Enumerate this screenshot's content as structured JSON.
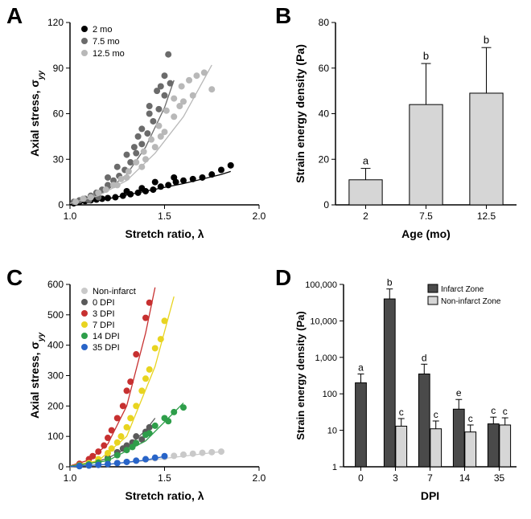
{
  "figure": {
    "background_color": "#ffffff",
    "panel_label_fontsize": 28,
    "panel_label_fontweight": "bold",
    "axis_label_fontsize": 14,
    "tick_fontsize": 12,
    "annotation_fontsize": 12
  },
  "panelA": {
    "label": "A",
    "type": "scatter",
    "xlabel": "Stretch ratio, λ",
    "ylabel": "Axial stress, σyy",
    "ylabel_prefix": "Axial stress, σ",
    "ylabel_sub": "yy",
    "xlim": [
      1.0,
      2.0
    ],
    "xticks": [
      1.0,
      1.5,
      2.0
    ],
    "ylim": [
      0,
      120
    ],
    "yticks": [
      0,
      30,
      60,
      90,
      120
    ],
    "legend_items": [
      {
        "label": "2 mo",
        "color": "#000000"
      },
      {
        "label": "7.5 mo",
        "color": "#6b6b6b"
      },
      {
        "label": "12.5 mo",
        "color": "#b8b8b8"
      }
    ],
    "series": [
      {
        "color": "#000000",
        "marker_size": 4,
        "points": [
          [
            1.02,
            1
          ],
          [
            1.05,
            2
          ],
          [
            1.08,
            2.5
          ],
          [
            1.11,
            3
          ],
          [
            1.14,
            3.5
          ],
          [
            1.17,
            4
          ],
          [
            1.2,
            4.5
          ],
          [
            1.24,
            5
          ],
          [
            1.28,
            6
          ],
          [
            1.32,
            7
          ],
          [
            1.36,
            8
          ],
          [
            1.4,
            9
          ],
          [
            1.44,
            10
          ],
          [
            1.48,
            12
          ],
          [
            1.52,
            13
          ],
          [
            1.56,
            15
          ],
          [
            1.6,
            16
          ],
          [
            1.65,
            17
          ],
          [
            1.7,
            18
          ],
          [
            1.75,
            20
          ],
          [
            1.8,
            23
          ],
          [
            1.85,
            26
          ],
          [
            1.45,
            15
          ],
          [
            1.55,
            18
          ],
          [
            1.38,
            11
          ],
          [
            1.3,
            9
          ]
        ],
        "fit_line": [
          [
            1.0,
            0
          ],
          [
            1.2,
            4
          ],
          [
            1.4,
            9
          ],
          [
            1.6,
            14
          ],
          [
            1.8,
            20
          ],
          [
            1.85,
            22
          ]
        ]
      },
      {
        "color": "#6b6b6b",
        "marker_size": 4,
        "points": [
          [
            1.02,
            2
          ],
          [
            1.05,
            3
          ],
          [
            1.08,
            4
          ],
          [
            1.11,
            6
          ],
          [
            1.14,
            8
          ],
          [
            1.17,
            10
          ],
          [
            1.2,
            13
          ],
          [
            1.23,
            16
          ],
          [
            1.26,
            19
          ],
          [
            1.29,
            23
          ],
          [
            1.32,
            28
          ],
          [
            1.35,
            34
          ],
          [
            1.38,
            40
          ],
          [
            1.41,
            47
          ],
          [
            1.44,
            55
          ],
          [
            1.47,
            63
          ],
          [
            1.5,
            72
          ],
          [
            1.53,
            80
          ],
          [
            1.48,
            78
          ],
          [
            1.42,
            60
          ],
          [
            1.36,
            45
          ],
          [
            1.3,
            33
          ],
          [
            1.25,
            25
          ],
          [
            1.2,
            18
          ],
          [
            1.34,
            38
          ],
          [
            1.38,
            50
          ],
          [
            1.42,
            65
          ],
          [
            1.46,
            75
          ],
          [
            1.5,
            85
          ],
          [
            1.52,
            99
          ],
          [
            1.15,
            5
          ],
          [
            1.1,
            3
          ]
        ],
        "fit_line": [
          [
            1.0,
            1
          ],
          [
            1.1,
            4
          ],
          [
            1.2,
            10
          ],
          [
            1.3,
            20
          ],
          [
            1.4,
            38
          ],
          [
            1.5,
            64
          ],
          [
            1.55,
            82
          ]
        ]
      },
      {
        "color": "#b8b8b8",
        "marker_size": 4,
        "points": [
          [
            1.03,
            2
          ],
          [
            1.07,
            4
          ],
          [
            1.11,
            5
          ],
          [
            1.15,
            8
          ],
          [
            1.19,
            10
          ],
          [
            1.23,
            13
          ],
          [
            1.27,
            17
          ],
          [
            1.31,
            22
          ],
          [
            1.35,
            28
          ],
          [
            1.39,
            35
          ],
          [
            1.43,
            43
          ],
          [
            1.47,
            52
          ],
          [
            1.51,
            62
          ],
          [
            1.55,
            70
          ],
          [
            1.59,
            78
          ],
          [
            1.63,
            82
          ],
          [
            1.67,
            85
          ],
          [
            1.71,
            87
          ],
          [
            1.75,
            76
          ],
          [
            1.4,
            30
          ],
          [
            1.45,
            38
          ],
          [
            1.5,
            48
          ],
          [
            1.55,
            58
          ],
          [
            1.6,
            68
          ],
          [
            1.65,
            72
          ],
          [
            1.58,
            65
          ],
          [
            1.48,
            45
          ],
          [
            1.38,
            25
          ],
          [
            1.3,
            18
          ],
          [
            1.25,
            13
          ]
        ],
        "fit_line": [
          [
            1.0,
            1
          ],
          [
            1.15,
            6
          ],
          [
            1.3,
            16
          ],
          [
            1.45,
            34
          ],
          [
            1.6,
            58
          ],
          [
            1.75,
            92
          ]
        ]
      }
    ]
  },
  "panelB": {
    "label": "B",
    "type": "bar",
    "xlabel": "Age (mo)",
    "ylabel": "Strain energy density (Pa)",
    "xlim_categories": [
      "2",
      "7.5",
      "12.5"
    ],
    "ylim": [
      0,
      80
    ],
    "yticks": [
      0,
      20,
      40,
      60,
      80
    ],
    "bar_color": "#d6d6d6",
    "bar_border": "#000000",
    "bar_width": 0.55,
    "bars": [
      {
        "category": "2",
        "value": 11,
        "error": 5,
        "annotation": "a"
      },
      {
        "category": "7.5",
        "value": 44,
        "error": 18,
        "annotation": "b"
      },
      {
        "category": "12.5",
        "value": 49,
        "error": 20,
        "annotation": "b"
      }
    ]
  },
  "panelC": {
    "label": "C",
    "type": "scatter",
    "xlabel": "Stretch ratio, λ",
    "ylabel_prefix": "Axial stress, σ",
    "ylabel_sub": "yy",
    "xlim": [
      1.0,
      2.0
    ],
    "xticks": [
      1.0,
      1.5,
      2.0
    ],
    "ylim": [
      0,
      600
    ],
    "yticks": [
      0,
      100,
      200,
      300,
      400,
      500,
      600
    ],
    "legend_items": [
      {
        "label": "Non-infarct",
        "color": "#c9c9c9"
      },
      {
        "label": "0 DPI",
        "color": "#5a5a5a"
      },
      {
        "label": "3 DPI",
        "color": "#c73030"
      },
      {
        "label": "7 DPI",
        "color": "#e8d420"
      },
      {
        "label": "14 DPI",
        "color": "#2e9e4a"
      },
      {
        "label": "35 DPI",
        "color": "#2864c8"
      }
    ],
    "series": [
      {
        "color": "#c9c9c9",
        "points": [
          [
            1.05,
            3
          ],
          [
            1.1,
            5
          ],
          [
            1.15,
            8
          ],
          [
            1.2,
            10
          ],
          [
            1.25,
            13
          ],
          [
            1.3,
            16
          ],
          [
            1.35,
            20
          ],
          [
            1.4,
            24
          ],
          [
            1.45,
            28
          ],
          [
            1.5,
            32
          ],
          [
            1.55,
            36
          ],
          [
            1.6,
            40
          ],
          [
            1.65,
            43
          ],
          [
            1.7,
            46
          ],
          [
            1.75,
            48
          ],
          [
            1.8,
            50
          ]
        ],
        "fit_line": [
          [
            1.0,
            0
          ],
          [
            1.2,
            8
          ],
          [
            1.4,
            20
          ],
          [
            1.6,
            35
          ],
          [
            1.8,
            50
          ]
        ]
      },
      {
        "color": "#5a5a5a",
        "points": [
          [
            1.05,
            5
          ],
          [
            1.1,
            10
          ],
          [
            1.15,
            18
          ],
          [
            1.2,
            30
          ],
          [
            1.25,
            48
          ],
          [
            1.3,
            70
          ],
          [
            1.35,
            100
          ],
          [
            1.4,
            115
          ],
          [
            1.42,
            130
          ],
          [
            1.38,
            90
          ],
          [
            1.33,
            80
          ],
          [
            1.28,
            60
          ]
        ],
        "fit_line": [
          [
            1.0,
            2
          ],
          [
            1.1,
            10
          ],
          [
            1.2,
            28
          ],
          [
            1.3,
            62
          ],
          [
            1.4,
            120
          ],
          [
            1.45,
            160
          ]
        ]
      },
      {
        "color": "#c73030",
        "points": [
          [
            1.05,
            10
          ],
          [
            1.1,
            25
          ],
          [
            1.15,
            50
          ],
          [
            1.2,
            95
          ],
          [
            1.25,
            160
          ],
          [
            1.3,
            250
          ],
          [
            1.35,
            370
          ],
          [
            1.4,
            490
          ],
          [
            1.42,
            540
          ],
          [
            1.32,
            280
          ],
          [
            1.28,
            200
          ],
          [
            1.22,
            120
          ],
          [
            1.18,
            70
          ],
          [
            1.12,
            35
          ]
        ],
        "fit_line": [
          [
            1.0,
            3
          ],
          [
            1.1,
            22
          ],
          [
            1.2,
            75
          ],
          [
            1.3,
            200
          ],
          [
            1.4,
            440
          ],
          [
            1.45,
            590
          ]
        ]
      },
      {
        "color": "#e8d420",
        "points": [
          [
            1.05,
            5
          ],
          [
            1.1,
            12
          ],
          [
            1.15,
            25
          ],
          [
            1.2,
            45
          ],
          [
            1.25,
            80
          ],
          [
            1.3,
            130
          ],
          [
            1.35,
            200
          ],
          [
            1.4,
            290
          ],
          [
            1.45,
            390
          ],
          [
            1.5,
            480
          ],
          [
            1.48,
            420
          ],
          [
            1.42,
            320
          ],
          [
            1.38,
            250
          ],
          [
            1.32,
            160
          ],
          [
            1.27,
            100
          ],
          [
            1.22,
            60
          ]
        ],
        "fit_line": [
          [
            1.0,
            2
          ],
          [
            1.15,
            20
          ],
          [
            1.3,
            100
          ],
          [
            1.45,
            330
          ],
          [
            1.55,
            560
          ]
        ]
      },
      {
        "color": "#2e9e4a",
        "points": [
          [
            1.05,
            4
          ],
          [
            1.1,
            8
          ],
          [
            1.15,
            14
          ],
          [
            1.2,
            24
          ],
          [
            1.25,
            38
          ],
          [
            1.3,
            55
          ],
          [
            1.35,
            78
          ],
          [
            1.4,
            105
          ],
          [
            1.45,
            135
          ],
          [
            1.5,
            160
          ],
          [
            1.55,
            180
          ],
          [
            1.6,
            195
          ],
          [
            1.52,
            150
          ],
          [
            1.42,
            110
          ],
          [
            1.33,
            65
          ]
        ],
        "fit_line": [
          [
            1.0,
            2
          ],
          [
            1.2,
            20
          ],
          [
            1.4,
            85
          ],
          [
            1.6,
            210
          ]
        ]
      },
      {
        "color": "#2864c8",
        "points": [
          [
            1.05,
            2
          ],
          [
            1.1,
            4
          ],
          [
            1.15,
            6
          ],
          [
            1.2,
            9
          ],
          [
            1.25,
            12
          ],
          [
            1.3,
            16
          ],
          [
            1.35,
            20
          ],
          [
            1.4,
            25
          ],
          [
            1.45,
            30
          ],
          [
            1.5,
            35
          ]
        ],
        "fit_line": [
          [
            1.0,
            1
          ],
          [
            1.2,
            8
          ],
          [
            1.4,
            22
          ],
          [
            1.5,
            34
          ]
        ]
      }
    ]
  },
  "panelD": {
    "label": "D",
    "type": "bar",
    "xlabel": "DPI",
    "ylabel": "Strain energy density (Pa)",
    "yscale": "log",
    "xlim_categories": [
      "0",
      "3",
      "7",
      "14",
      "35"
    ],
    "ylim": [
      1,
      100000
    ],
    "yticks": [
      1,
      10,
      100,
      1000,
      10000,
      100000
    ],
    "ytick_labels": [
      "1",
      "10",
      "100",
      "1,000",
      "10,000",
      "100,000"
    ],
    "legend": [
      {
        "label": "Infarct Zone",
        "color": "#4a4a4a"
      },
      {
        "label": "Non-infarct Zone",
        "color": "#d6d6d6"
      }
    ],
    "bar_border": "#000000",
    "groups": [
      {
        "category": "0",
        "bars": [
          {
            "value": 200,
            "error_high": 350,
            "color": "#4a4a4a",
            "annotation": "a"
          }
        ]
      },
      {
        "category": "3",
        "bars": [
          {
            "value": 40000,
            "error_high": 75000,
            "color": "#4a4a4a",
            "annotation": "b"
          },
          {
            "value": 13,
            "error_high": 21,
            "color": "#d6d6d6",
            "annotation": "c"
          }
        ]
      },
      {
        "category": "7",
        "bars": [
          {
            "value": 350,
            "error_high": 650,
            "color": "#4a4a4a",
            "annotation": "d"
          },
          {
            "value": 11,
            "error_high": 18,
            "color": "#d6d6d6",
            "annotation": "c"
          }
        ]
      },
      {
        "category": "14",
        "bars": [
          {
            "value": 38,
            "error_high": 70,
            "color": "#4a4a4a",
            "annotation": "e"
          },
          {
            "value": 9,
            "error_high": 14,
            "color": "#d6d6d6",
            "annotation": "c"
          }
        ]
      },
      {
        "category": "35",
        "bars": [
          {
            "value": 15,
            "error_high": 23,
            "color": "#4a4a4a",
            "annotation": "c"
          },
          {
            "value": 14,
            "error_high": 22,
            "color": "#d6d6d6",
            "annotation": "c"
          }
        ]
      }
    ]
  }
}
